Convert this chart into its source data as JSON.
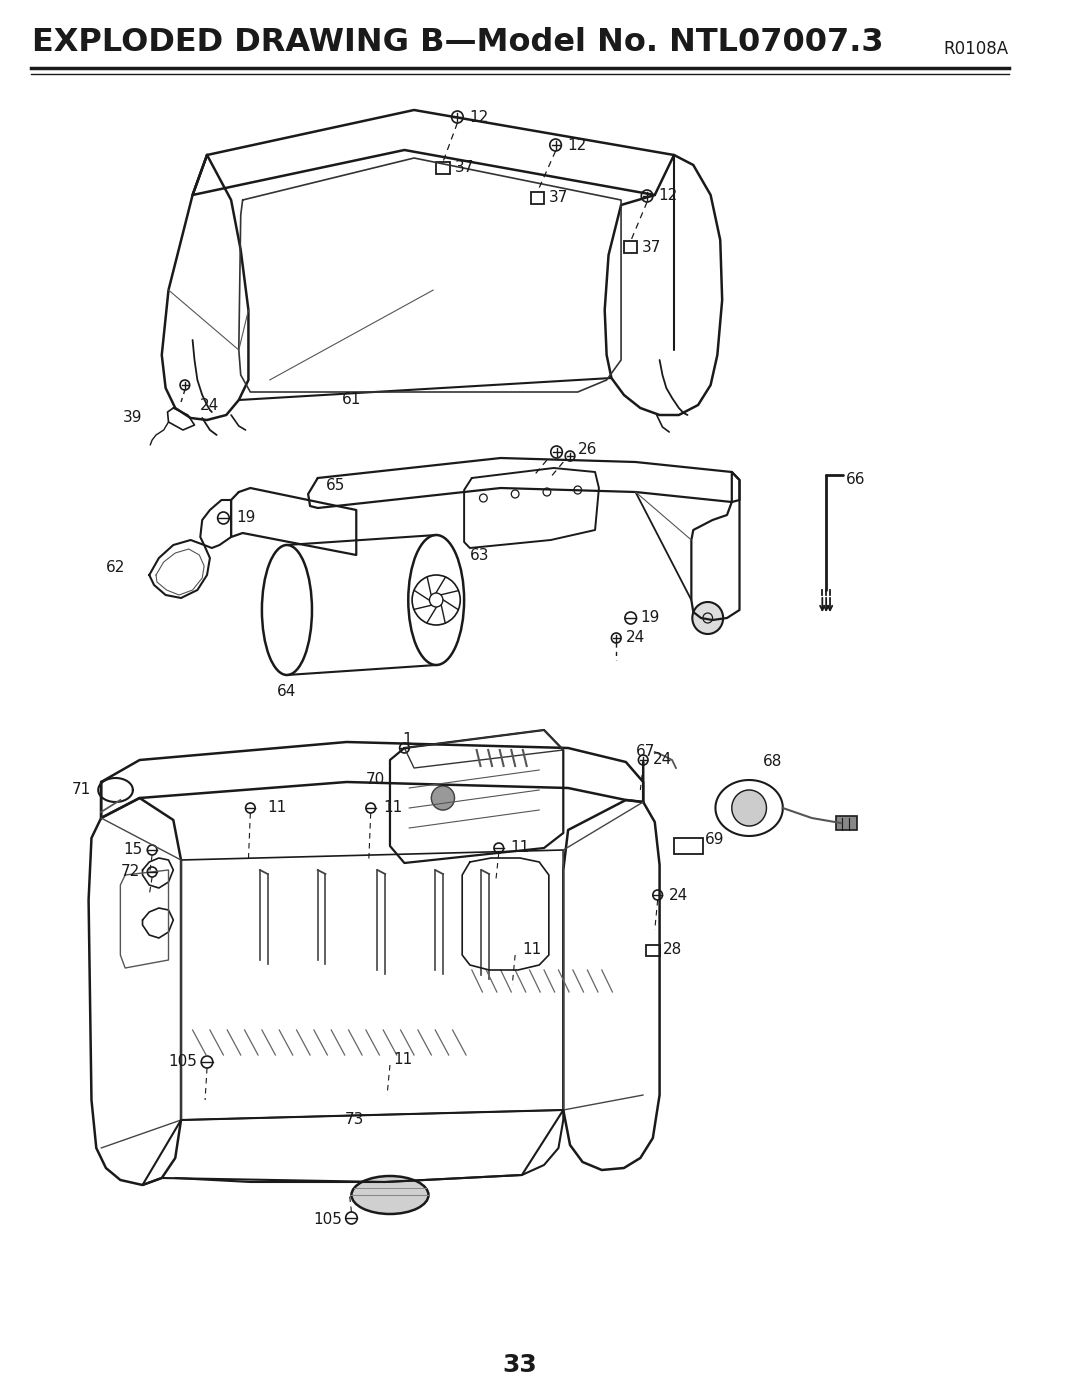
{
  "title": "EXPLODED DRAWING B—Model No. NTL07007.3",
  "title_code": "R0108A",
  "page_number": "33",
  "bg_color": "#ffffff",
  "line_color": "#1a1a1a"
}
